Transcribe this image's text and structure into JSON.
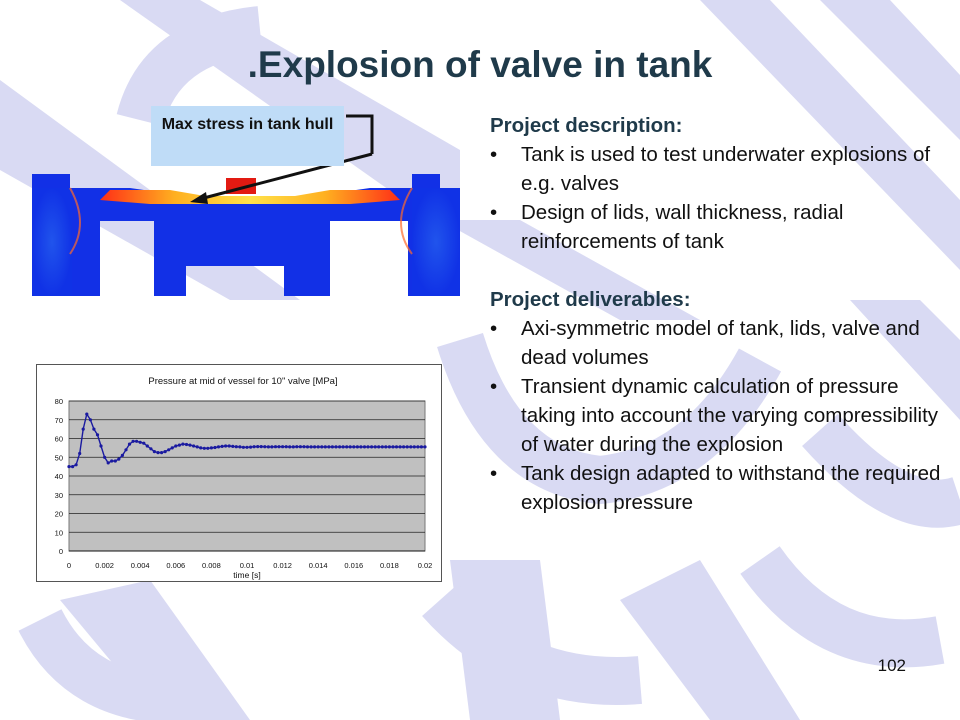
{
  "slide": {
    "title": ".Explosion of valve in tank",
    "page_number": "102"
  },
  "fe_model": {
    "callout_label": "Max stress in tank hull"
  },
  "description": {
    "heading": "Project description:",
    "items": [
      "Tank is used to test underwater explosions of e.g. valves",
      "Design of lids, wall thickness, radial reinforcements of tank"
    ]
  },
  "deliverables": {
    "heading": "Project deliverables:",
    "items": [
      "Axi-symmetric model of tank, lids, valve and dead volumes",
      "Transient dynamic calculation of pressure taking into account the varying compressibility of water during the explosion",
      "Tank design adapted to withstand the required explosion pressure"
    ]
  },
  "chart_data": {
    "type": "line",
    "title": "Pressure at mid of vessel for 10\" valve [MPa]",
    "xlabel": "time [s]",
    "ylabel": "",
    "xlim": [
      0,
      0.02
    ],
    "ylim": [
      0,
      80
    ],
    "x_ticks": [
      "0",
      "0.002",
      "0.004",
      "0.006",
      "0.008",
      "0.01",
      "0.012",
      "0.014",
      "0.016",
      "0.018",
      "0.02"
    ],
    "y_ticks": [
      "0",
      "10",
      "20",
      "30",
      "40",
      "50",
      "60",
      "70",
      "80"
    ],
    "grid": true,
    "plot_background": "#c0c0c0",
    "series": [
      {
        "color": "#1a1aa0",
        "x": [
          0,
          0.0002,
          0.0004,
          0.0006,
          0.0008,
          0.001,
          0.0012,
          0.0014,
          0.0016,
          0.0018,
          0.002,
          0.0022,
          0.0024,
          0.0026,
          0.0028,
          0.003,
          0.0032,
          0.0034,
          0.0036,
          0.0038,
          0.004,
          0.0042,
          0.0044,
          0.0046,
          0.0048,
          0.005,
          0.0052,
          0.0054,
          0.0056,
          0.0058,
          0.006,
          0.0062,
          0.0064,
          0.0066,
          0.0068,
          0.007,
          0.0072,
          0.0074,
          0.0076,
          0.0078,
          0.008,
          0.0082,
          0.0084,
          0.0086,
          0.0088,
          0.009,
          0.0092,
          0.0094,
          0.0096,
          0.0098,
          0.01,
          0.0102,
          0.0104,
          0.0106,
          0.0108,
          0.011,
          0.0112,
          0.0114,
          0.0116,
          0.0118,
          0.012,
          0.0122,
          0.0124,
          0.0126,
          0.0128,
          0.013,
          0.0132,
          0.0134,
          0.0136,
          0.0138,
          0.014,
          0.0142,
          0.0144,
          0.0146,
          0.0148,
          0.015,
          0.0152,
          0.0154,
          0.0156,
          0.0158,
          0.016,
          0.0162,
          0.0164,
          0.0166,
          0.0168,
          0.017,
          0.0172,
          0.0174,
          0.0176,
          0.0178,
          0.018,
          0.0182,
          0.0184,
          0.0186,
          0.0188,
          0.019,
          0.0192,
          0.0194,
          0.0196,
          0.0198,
          0.02
        ],
        "y": [
          45,
          45,
          46,
          52,
          65,
          73,
          70,
          65,
          62,
          56,
          50,
          47,
          48,
          48,
          49,
          51,
          54,
          57,
          58.5,
          58.5,
          58,
          57.5,
          56,
          54.5,
          53,
          52.5,
          52.5,
          53,
          54,
          55,
          56,
          56.5,
          57,
          56.8,
          56.5,
          56,
          55.5,
          55,
          54.8,
          54.8,
          55,
          55.2,
          55.5,
          55.8,
          56,
          56,
          55.8,
          55.6,
          55.5,
          55.3,
          55.3,
          55.4,
          55.6,
          55.7,
          55.7,
          55.6,
          55.5,
          55.5,
          55.6,
          55.6,
          55.6,
          55.6,
          55.5,
          55.5,
          55.6,
          55.6,
          55.6,
          55.5,
          55.5,
          55.5,
          55.5,
          55.5,
          55.5,
          55.5,
          55.5,
          55.5,
          55.5,
          55.5,
          55.5,
          55.5,
          55.5,
          55.5,
          55.5,
          55.5,
          55.5,
          55.5,
          55.5,
          55.5,
          55.5,
          55.5,
          55.5,
          55.5,
          55.5,
          55.5,
          55.5,
          55.5,
          55.5,
          55.5,
          55.5,
          55.5,
          55.5
        ]
      }
    ]
  }
}
